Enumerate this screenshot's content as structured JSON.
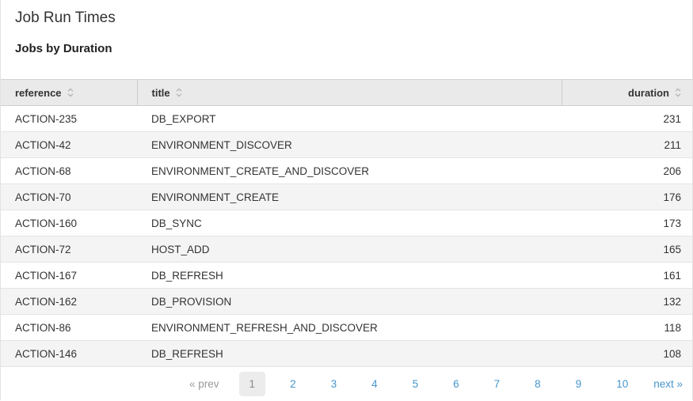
{
  "page": {
    "title": "Job Run Times",
    "subtitle": "Jobs by Duration"
  },
  "table": {
    "columns": [
      {
        "key": "reference",
        "label": "reference",
        "icon": "sort-icon"
      },
      {
        "key": "title",
        "label": "title",
        "icon": "sort-icon"
      },
      {
        "key": "duration",
        "label": "duration",
        "icon": "sort-icon"
      }
    ],
    "rows": [
      {
        "reference": "ACTION-235",
        "title": "DB_EXPORT",
        "duration": 231
      },
      {
        "reference": "ACTION-42",
        "title": "ENVIRONMENT_DISCOVER",
        "duration": 211
      },
      {
        "reference": "ACTION-68",
        "title": "ENVIRONMENT_CREATE_AND_DISCOVER",
        "duration": 206
      },
      {
        "reference": "ACTION-70",
        "title": "ENVIRONMENT_CREATE",
        "duration": 176
      },
      {
        "reference": "ACTION-160",
        "title": "DB_SYNC",
        "duration": 173
      },
      {
        "reference": "ACTION-72",
        "title": "HOST_ADD",
        "duration": 165
      },
      {
        "reference": "ACTION-167",
        "title": "DB_REFRESH",
        "duration": 161
      },
      {
        "reference": "ACTION-162",
        "title": "DB_PROVISION",
        "duration": 132
      },
      {
        "reference": "ACTION-86",
        "title": "ENVIRONMENT_REFRESH_AND_DISCOVER",
        "duration": 118
      },
      {
        "reference": "ACTION-146",
        "title": "DB_REFRESH",
        "duration": 108
      }
    ]
  },
  "pagination": {
    "prev_label": "« prev",
    "next_label": "next »",
    "current_page": "1",
    "pages": [
      "1",
      "2",
      "3",
      "4",
      "5",
      "6",
      "7",
      "8",
      "9",
      "10"
    ]
  },
  "colors": {
    "link_blue": "#4596cd",
    "header_bg": "#eaeaea",
    "row_alt_bg": "#f4f4f4",
    "border": "#e4e4e4",
    "text": "#333333",
    "muted_gray": "#9a9a9a",
    "current_page_bg": "#ececec"
  }
}
